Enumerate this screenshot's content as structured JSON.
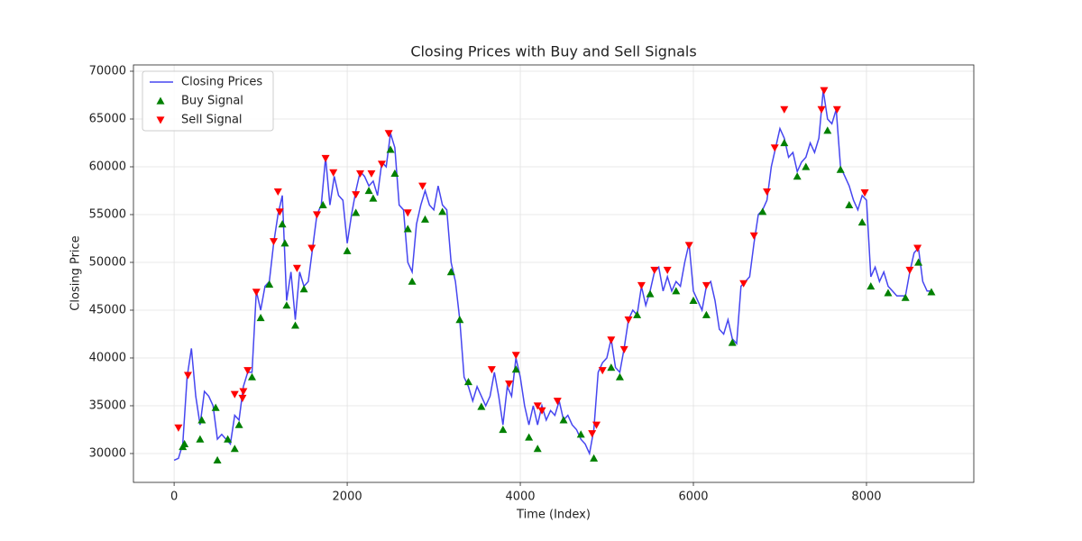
{
  "chart_data": {
    "type": "line",
    "title": "Closing Prices with Buy and Sell Signals",
    "x_label": "Time (Index)",
    "y_label": "Closing Price",
    "xlim": [
      -470,
      9240
    ],
    "ylim": [
      26980,
      70660
    ],
    "xticks": [
      0,
      2000,
      4000,
      6000,
      8000
    ],
    "yticks": [
      30000,
      35000,
      40000,
      45000,
      50000,
      55000,
      60000,
      65000,
      70000
    ],
    "grid": true,
    "legend": "upper left",
    "series": [
      {
        "name": "Closing Prices",
        "color": "#4646f0",
        "style": "line",
        "x": [
          0,
          50,
          100,
          150,
          200,
          250,
          300,
          350,
          400,
          450,
          500,
          550,
          600,
          650,
          700,
          750,
          800,
          850,
          900,
          950,
          1000,
          1050,
          1100,
          1150,
          1200,
          1250,
          1300,
          1350,
          1400,
          1450,
          1500,
          1550,
          1600,
          1650,
          1700,
          1750,
          1800,
          1850,
          1900,
          1950,
          2000,
          2050,
          2100,
          2150,
          2200,
          2250,
          2300,
          2350,
          2400,
          2450,
          2500,
          2550,
          2600,
          2650,
          2700,
          2750,
          2800,
          2850,
          2900,
          2950,
          3000,
          3050,
          3100,
          3150,
          3200,
          3250,
          3300,
          3350,
          3400,
          3450,
          3500,
          3550,
          3600,
          3650,
          3700,
          3750,
          3800,
          3850,
          3900,
          3950,
          4000,
          4050,
          4100,
          4150,
          4200,
          4250,
          4300,
          4350,
          4400,
          4450,
          4500,
          4550,
          4600,
          4650,
          4700,
          4750,
          4800,
          4850,
          4900,
          4950,
          5000,
          5050,
          5100,
          5150,
          5200,
          5250,
          5300,
          5350,
          5400,
          5450,
          5500,
          5550,
          5600,
          5650,
          5700,
          5750,
          5800,
          5850,
          5900,
          5950,
          6000,
          6050,
          6100,
          6150,
          6200,
          6250,
          6300,
          6350,
          6400,
          6450,
          6500,
          6550,
          6600,
          6650,
          6700,
          6750,
          6800,
          6850,
          6900,
          6950,
          7000,
          7050,
          7100,
          7150,
          7200,
          7250,
          7300,
          7350,
          7400,
          7450,
          7500,
          7550,
          7600,
          7650,
          7700,
          7750,
          7800,
          7850,
          7900,
          7950,
          8000,
          8050,
          8100,
          8150,
          8200,
          8250,
          8300,
          8350,
          8400,
          8450,
          8500,
          8550,
          8600,
          8650,
          8700,
          8750
        ],
        "values": [
          29300,
          29500,
          31000,
          38000,
          41000,
          36000,
          33000,
          36500,
          36000,
          35000,
          31500,
          32000,
          31500,
          31000,
          34000,
          33500,
          37000,
          38500,
          38500,
          47000,
          45000,
          47500,
          48000,
          52000,
          55000,
          57000,
          46000,
          49000,
          44000,
          49000,
          47500,
          48000,
          51500,
          55000,
          56000,
          61000,
          56000,
          59000,
          57000,
          56500,
          52000,
          55000,
          57500,
          59500,
          59000,
          58000,
          58500,
          57000,
          60500,
          60000,
          63500,
          62000,
          56000,
          55500,
          50000,
          49000,
          54000,
          56000,
          57500,
          56000,
          55500,
          58000,
          56000,
          55500,
          50000,
          48000,
          44000,
          38000,
          37000,
          35500,
          37000,
          36000,
          35000,
          36000,
          38500,
          36000,
          33000,
          37000,
          36000,
          40000,
          38000,
          35000,
          33000,
          35000,
          33000,
          35000,
          33500,
          34500,
          34000,
          35500,
          33500,
          34000,
          33000,
          32500,
          31500,
          31000,
          30000,
          32500,
          38500,
          39500,
          40000,
          42000,
          39000,
          38500,
          41000,
          44000,
          45000,
          44500,
          47500,
          45500,
          47000,
          49000,
          49500,
          47000,
          48500,
          47000,
          48000,
          47500,
          50000,
          52000,
          47000,
          46000,
          45000,
          47500,
          48000,
          46000,
          43000,
          42500,
          44000,
          42000,
          41500,
          47500,
          48000,
          48500,
          52000,
          55000,
          55500,
          56500,
          60000,
          62000,
          64000,
          63000,
          61000,
          61500,
          59500,
          60500,
          61000,
          62500,
          61500,
          63000,
          68000,
          65000,
          64500,
          66000,
          60000,
          59000,
          58000,
          56500,
          55500,
          57000,
          56500,
          48500,
          49500,
          48000,
          49000,
          47500,
          47000,
          46500,
          46500,
          46500,
          49000,
          51000,
          51500,
          48000,
          47000,
          47000
        ]
      },
      {
        "name": "Buy Signal",
        "color": "#008000",
        "style": "scatter",
        "marker": "up",
        "x": [
          100,
          120,
          300,
          320,
          500,
          480,
          620,
          700,
          750,
          900,
          1000,
          1100,
          1250,
          1280,
          1300,
          1400,
          1500,
          1720,
          2000,
          2100,
          2250,
          2300,
          2500,
          2550,
          2700,
          2750,
          2900,
          3100,
          3200,
          3300,
          3400,
          3550,
          3800,
          3950,
          4100,
          4200,
          4500,
          4700,
          4850,
          5050,
          5150,
          5350,
          5500,
          5800,
          6000,
          6150,
          6450,
          6800,
          7050,
          7200,
          7300,
          7550,
          7700,
          7800,
          7950,
          8050,
          8250,
          8450,
          8600,
          8750
        ],
        "values": [
          30700,
          31000,
          31500,
          33500,
          29300,
          34800,
          31500,
          30500,
          33000,
          38000,
          44200,
          47700,
          54000,
          52000,
          45500,
          43400,
          47200,
          56000,
          51200,
          55200,
          57500,
          56700,
          61800,
          59300,
          53500,
          48000,
          54500,
          55300,
          49000,
          44000,
          37500,
          34900,
          32500,
          38800,
          31700,
          30500,
          33500,
          32000,
          29500,
          39000,
          38000,
          44500,
          46700,
          47000,
          46000,
          44500,
          41600,
          55300,
          62500,
          59000,
          60000,
          63800,
          59700,
          56000,
          54200,
          47500,
          46800,
          46300,
          50000,
          46900
        ]
      },
      {
        "name": "Sell Signal",
        "color": "#ff0000",
        "style": "scatter",
        "marker": "down",
        "x": [
          50,
          160,
          700,
          790,
          800,
          850,
          950,
          1150,
          1200,
          1220,
          1420,
          1590,
          1650,
          1750,
          1840,
          2100,
          2150,
          2280,
          2400,
          2480,
          2700,
          2870,
          3670,
          3870,
          3950,
          4200,
          4250,
          4430,
          4830,
          4880,
          4950,
          5050,
          5200,
          5250,
          5400,
          5550,
          5700,
          5950,
          6150,
          6580,
          6700,
          6850,
          6940,
          7050,
          7480,
          7510,
          7660,
          7980,
          8500,
          8590
        ],
        "values": [
          32700,
          38200,
          36200,
          35800,
          36500,
          38700,
          46900,
          52200,
          57400,
          55300,
          49400,
          51500,
          55000,
          60900,
          59400,
          57100,
          59300,
          59300,
          60300,
          63500,
          55200,
          58000,
          38800,
          37300,
          40300,
          35000,
          34500,
          35500,
          32100,
          33000,
          38700,
          41900,
          40900,
          44000,
          47600,
          49200,
          49200,
          51800,
          47600,
          47800,
          52800,
          57400,
          62000,
          66000,
          66000,
          68000,
          66000,
          57300,
          49200,
          51500
        ]
      }
    ]
  }
}
